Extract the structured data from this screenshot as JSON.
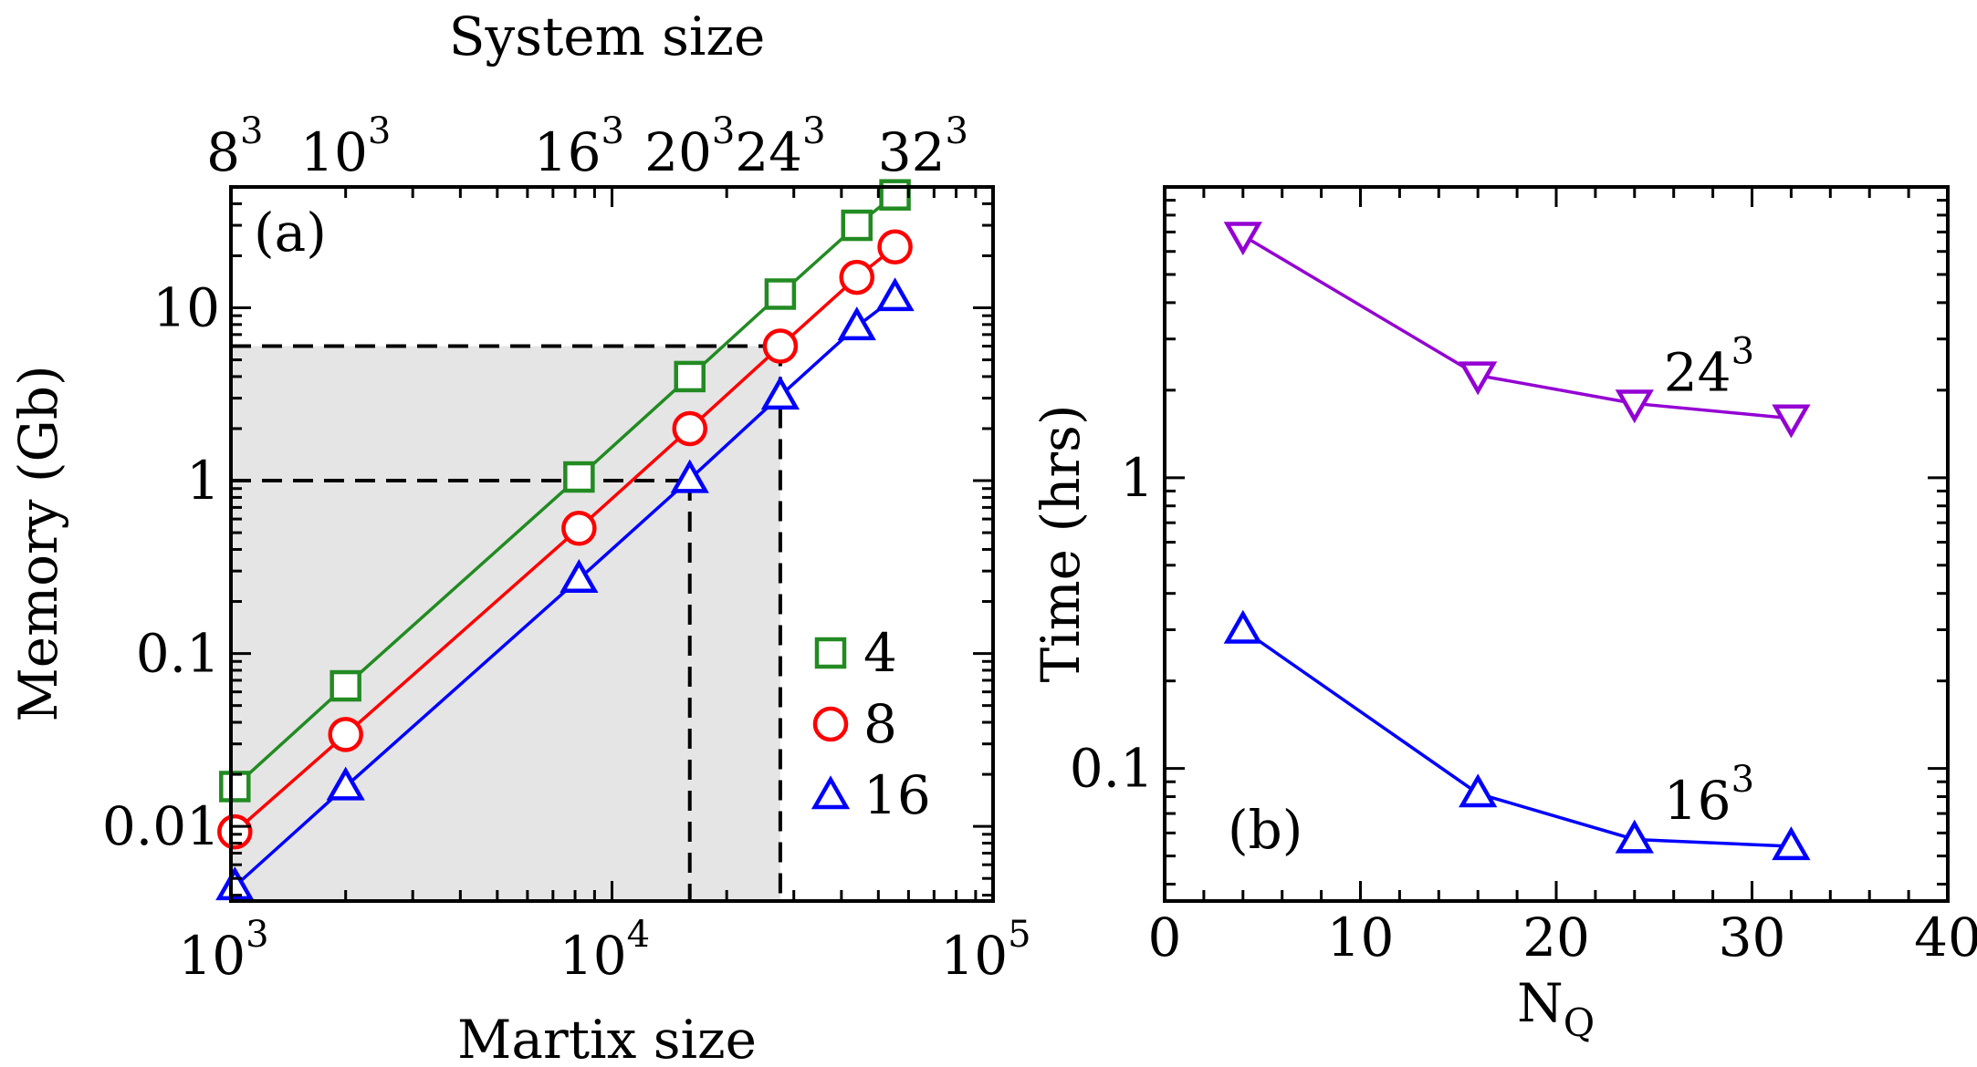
{
  "chart_data": [
    {
      "panel": "a",
      "type": "line",
      "scale": "log-log",
      "panel_label": "(a)",
      "xlabel": "Martix size",
      "ylabel": "Memory (Gb)",
      "top_axis_label": "System size",
      "xlim": [
        1000,
        100000
      ],
      "ylim": [
        0.0037,
        50
      ],
      "x_tick_labels": [
        {
          "value": 1000,
          "base": "10",
          "exp": "3"
        },
        {
          "value": 10000,
          "base": "10",
          "exp": "4"
        },
        {
          "value": 100000,
          "base": "10",
          "exp": "5"
        }
      ],
      "y_tick_labels": [
        {
          "value": 0.01,
          "label": "0.01"
        },
        {
          "value": 0.1,
          "label": "0.1"
        },
        {
          "value": 1,
          "label": "1"
        },
        {
          "value": 10,
          "label": "10"
        }
      ],
      "top_tick_labels": [
        {
          "x": 1024,
          "base": "8",
          "exp": "3"
        },
        {
          "x": 2000,
          "base": "10",
          "exp": "3"
        },
        {
          "x": 8192,
          "base": "16",
          "exp": "3"
        },
        {
          "x": 16000,
          "base": "20",
          "exp": "3"
        },
        {
          "x": 27648,
          "base": "24",
          "exp": "3"
        },
        {
          "x": 65536,
          "base": "32",
          "exp": "3"
        }
      ],
      "shaded_region": {
        "xmax": 27648,
        "ymax": 6
      },
      "guide_lines": [
        {
          "x": 16000,
          "y": 1
        },
        {
          "x": 27648,
          "y": 6
        }
      ],
      "series": [
        {
          "name": "4",
          "marker": "square",
          "color": "#228b22",
          "x": [
            1024,
            2000,
            8192,
            16000,
            27648,
            43904,
            55296
          ],
          "y": [
            0.017,
            0.065,
            1.05,
            4.0,
            12.0,
            30.0,
            45.0
          ]
        },
        {
          "name": "8",
          "marker": "circle",
          "color": "#ff0000",
          "x": [
            1024,
            2000,
            8192,
            16000,
            27648,
            43904,
            55296
          ],
          "y": [
            0.0093,
            0.034,
            0.53,
            2.0,
            6.0,
            15.0,
            22.5
          ]
        },
        {
          "name": "16",
          "marker": "triangle-up",
          "color": "#0000ff",
          "x": [
            1024,
            2000,
            8192,
            16000,
            27648,
            43904,
            55296
          ],
          "y": [
            0.0045,
            0.017,
            0.27,
            1.02,
            3.1,
            7.8,
            11.5
          ]
        }
      ]
    },
    {
      "panel": "b",
      "type": "line",
      "scale": "linear-log",
      "panel_label": "(b)",
      "xlabel_base": "N",
      "xlabel_sub": "Q",
      "ylabel": "Time (hrs)",
      "xlim": [
        0,
        40
      ],
      "ylim": [
        0.035,
        10
      ],
      "x_tick_labels": [
        "0",
        "10",
        "20",
        "30",
        "40"
      ],
      "y_tick_labels": [
        {
          "value": 0.1,
          "label": "0.1"
        },
        {
          "value": 1,
          "label": "1"
        }
      ],
      "series": [
        {
          "name": "24",
          "exp": "3",
          "marker": "triangle-down",
          "color": "#9400d3",
          "x": [
            4,
            16,
            24,
            32
          ],
          "y": [
            6.8,
            2.25,
            1.8,
            1.6
          ]
        },
        {
          "name": "16",
          "exp": "3",
          "marker": "triangle-up",
          "color": "#0000ff",
          "x": [
            4,
            16,
            24,
            32
          ],
          "y": [
            0.3,
            0.082,
            0.057,
            0.054
          ]
        }
      ]
    }
  ]
}
